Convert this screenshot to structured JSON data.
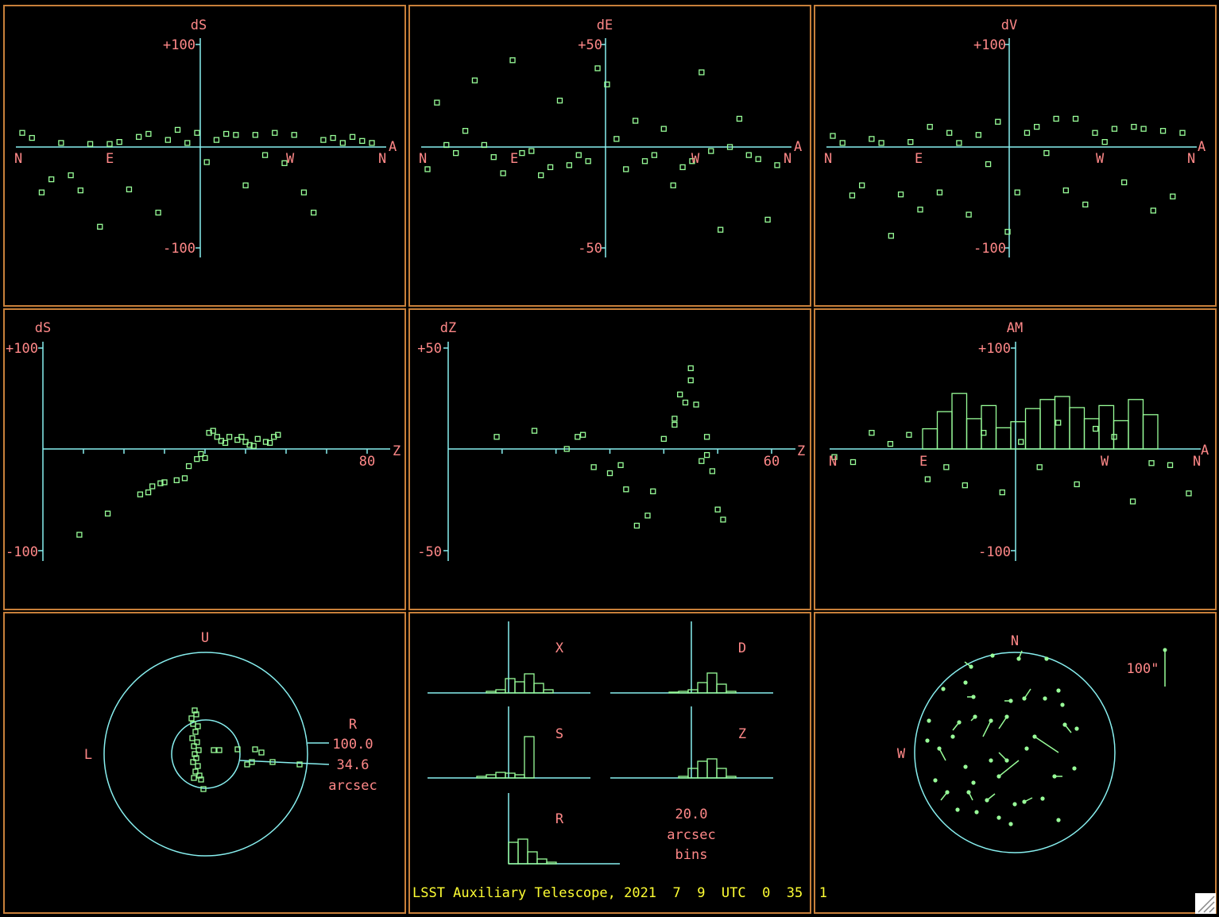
{
  "colors": {
    "background": "#000000",
    "border": "#c8803a",
    "axis": "#88f0f0",
    "label": "#ff8888",
    "data": "#99ff99",
    "footer": "#ffff33"
  },
  "panels": {
    "p1": {
      "label": "dS",
      "ymax": "+100",
      "ymin": "-100",
      "ticks": [
        "N",
        "E",
        "W",
        "N"
      ],
      "end": "A"
    },
    "p2": {
      "label": "dE",
      "ymax": "+50",
      "ymin": "-50",
      "ticks": [
        "N",
        "E",
        "W",
        "N"
      ],
      "end": "A"
    },
    "p3": {
      "label": "dV",
      "ymax": "+100",
      "ymin": "-100",
      "ticks": [
        "N",
        "E",
        "W",
        "N"
      ],
      "end": "A"
    },
    "p4": {
      "label": "dS",
      "ymax": "+100",
      "ymin": "-100",
      "xtick": "80",
      "end": "Z"
    },
    "p5": {
      "label": "dZ",
      "ymax": "+50",
      "ymin": "-50",
      "xtick": "60",
      "end": "Z"
    },
    "p6": {
      "label": "AM",
      "ymax": "+100",
      "ymin": "-100",
      "ticks": [
        "N",
        "E",
        "W",
        "N"
      ],
      "end": "A"
    },
    "p7": {
      "up": "U",
      "left": "L",
      "radial": "R",
      "outer": "100.0",
      "inner": "34.6",
      "unit": "arcsec"
    },
    "p8": {
      "hists": [
        "X",
        "D",
        "S",
        "Z",
        "R"
      ],
      "bin": "20.0",
      "unit": "arcsec",
      "bins": "bins"
    },
    "p9": {
      "north": "N",
      "west": "W",
      "scale": "100\""
    }
  },
  "footer": "LSST Auxiliary Telescope, 2021  7  9  UTC  0  35  1",
  "chart_data": [
    {
      "type": "scatter",
      "title": "dS",
      "xlabel": "azimuth",
      "x_ticks": [
        "N",
        "E",
        "W",
        "N"
      ],
      "ylim": [
        -100,
        100
      ],
      "y": [
        14,
        9,
        -45,
        -32,
        4,
        -28,
        -43,
        3,
        -79,
        3,
        5,
        -42,
        10,
        13,
        -65,
        7,
        17,
        4,
        14,
        -15,
        7,
        13,
        12,
        -38,
        12,
        -8,
        14,
        -16,
        12,
        -45,
        -65,
        7,
        9,
        4,
        10,
        6,
        4
      ]
    },
    {
      "type": "scatter",
      "title": "dE",
      "xlabel": "azimuth",
      "x_ticks": [
        "N",
        "E",
        "W",
        "N"
      ],
      "ylim": [
        -50,
        50
      ],
      "y": [
        -11,
        22,
        1,
        -3,
        8,
        33,
        1,
        -5,
        -13,
        43,
        -3,
        -2,
        -14,
        -10,
        23,
        -9,
        -4,
        -7,
        39,
        31,
        4,
        -11,
        13,
        -7,
        -4,
        9,
        -19,
        -10,
        -7,
        37,
        -2,
        -41,
        0,
        14,
        -4,
        -6,
        -36,
        -9
      ]
    },
    {
      "type": "scatter",
      "title": "dV",
      "xlabel": "azimuth",
      "x_ticks": [
        "N",
        "E",
        "W",
        "N"
      ],
      "ylim": [
        -100,
        100
      ],
      "y": [
        11,
        4,
        -48,
        -38,
        8,
        4,
        -88,
        -47,
        5,
        -62,
        20,
        -45,
        14,
        4,
        -67,
        12,
        -17,
        25,
        -84,
        -45,
        14,
        20,
        -6,
        28,
        -43,
        28,
        -57,
        14,
        5,
        18,
        -35,
        20,
        18,
        -63,
        16,
        -49,
        14
      ]
    },
    {
      "type": "scatter",
      "title": "dS",
      "xlabel": "Z",
      "ylim": [
        -100,
        100
      ],
      "x_ticks": [
        "80"
      ],
      "x": [
        9,
        16,
        24,
        26,
        27,
        29,
        30,
        33,
        35,
        36,
        38,
        39,
        40,
        41,
        42,
        43,
        44,
        45,
        46,
        48,
        49,
        50,
        51,
        52,
        53,
        55,
        56,
        57,
        58
      ],
      "y": [
        -85,
        -64,
        -45,
        -43,
        -37,
        -34,
        -33,
        -31,
        -29,
        -17,
        -10,
        -5,
        -9,
        16,
        18,
        12,
        8,
        6,
        12,
        9,
        12,
        7,
        4,
        3,
        10,
        7,
        6,
        12,
        14
      ]
    },
    {
      "type": "scatter",
      "title": "dZ",
      "xlabel": "Z",
      "ylim": [
        -50,
        50
      ],
      "x_ticks": [
        "60"
      ],
      "x": [
        9,
        16,
        22,
        24,
        25,
        27,
        30,
        32,
        33,
        35,
        37,
        38,
        40,
        42,
        42,
        43,
        44,
        45,
        45,
        46,
        47,
        48,
        48,
        49,
        50,
        51
      ],
      "y": [
        6,
        9,
        0,
        6,
        7,
        -9,
        -12,
        -8,
        -20,
        -38,
        -33,
        -21,
        5,
        12,
        15,
        27,
        23,
        34,
        40,
        22,
        -6,
        -3,
        6,
        -11,
        -30,
        -35
      ]
    },
    {
      "type": "bar",
      "title": "AM",
      "xlabel": "azimuth",
      "x_ticks": [
        "N",
        "E",
        "W",
        "N"
      ],
      "ylim": [
        -100,
        100
      ],
      "values": [
        20,
        37,
        55,
        30,
        43,
        21,
        27,
        40,
        49,
        52,
        41,
        30,
        43,
        28,
        49,
        34
      ],
      "points_y": [
        -8,
        -13,
        16,
        5,
        14,
        -30,
        -18,
        -36,
        16,
        -43,
        7,
        -18,
        26,
        -35,
        20,
        12,
        -52,
        -14,
        -16,
        -44
      ]
    }
  ]
}
